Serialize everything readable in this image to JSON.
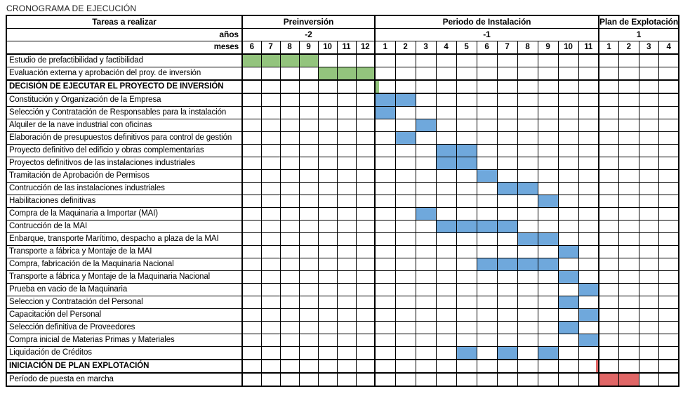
{
  "title": "CRONOGRAMA DE EJECUCIÓN",
  "colors": {
    "green": "#93C47D",
    "blue": "#6FA8DC",
    "red": "#E06666",
    "border": "#000000"
  },
  "chart_data": {
    "type": "table",
    "subtype": "gantt",
    "title": "CRONOGRAMA DE EJECUCIÓN",
    "header": {
      "tasks_col": "Tareas a realizar",
      "years_label": "años",
      "months_label": "meses"
    },
    "groups": [
      {
        "label": "Preinversión",
        "year": "-2",
        "months": [
          "6",
          "7",
          "8",
          "9",
          "10",
          "11",
          "12"
        ]
      },
      {
        "label": "Periodo de Instalación",
        "year": "-1",
        "months": [
          "1",
          "2",
          "3",
          "4",
          "5",
          "6",
          "7",
          "8",
          "9",
          "10",
          "11"
        ]
      },
      {
        "label": "Plan de Explotación",
        "year": "1",
        "months": [
          "1",
          "2",
          "3",
          "4"
        ]
      }
    ],
    "tasks": [
      {
        "label": "Estudio de prefactibilidad y factibilidad",
        "color": "green",
        "fills": [
          {
            "group": 0,
            "months": [
              6,
              7,
              8,
              9
            ]
          }
        ]
      },
      {
        "label": "Evaluación externa y aprobación del proy. de inversión",
        "color": "green",
        "fills": [
          {
            "group": 0,
            "months": [
              10,
              11,
              12
            ]
          }
        ]
      },
      {
        "label": "DECISIÓN DE EJECUTAR EL PROYECTO DE INVERSIÓN",
        "section": true,
        "marker": {
          "group": 1,
          "month": 1,
          "edge": "left",
          "color": "green"
        }
      },
      {
        "label": "Constitución y Organización de la Empresa",
        "color": "blue",
        "fills": [
          {
            "group": 1,
            "months": [
              1,
              2
            ]
          }
        ]
      },
      {
        "label": "Selección y Contratación de Responsables para la instalación",
        "color": "blue",
        "fills": [
          {
            "group": 1,
            "months": [
              1
            ]
          }
        ]
      },
      {
        "label": "Alquiler de la nave industrial con oficinas",
        "color": "blue",
        "fills": [
          {
            "group": 1,
            "months": [
              3
            ]
          }
        ]
      },
      {
        "label": "Elaboración de presupuestos definitivos para control de gestión",
        "color": "blue",
        "fills": [
          {
            "group": 1,
            "months": [
              2
            ]
          }
        ]
      },
      {
        "label": "Proyecto definitivo del edificio y obras complementarias",
        "color": "blue",
        "fills": [
          {
            "group": 1,
            "months": [
              4,
              5
            ]
          }
        ]
      },
      {
        "label": "Proyectos definitivos de las instalaciones industriales",
        "color": "blue",
        "fills": [
          {
            "group": 1,
            "months": [
              4,
              5
            ]
          }
        ]
      },
      {
        "label": "Tramitación de Aprobación de Permisos",
        "color": "blue",
        "fills": [
          {
            "group": 1,
            "months": [
              6
            ]
          }
        ]
      },
      {
        "label": "Contrucción de las instalaciones industriales",
        "color": "blue",
        "fills": [
          {
            "group": 1,
            "months": [
              7,
              8
            ]
          }
        ]
      },
      {
        "label": "Habilitaciones definitivas",
        "color": "blue",
        "fills": [
          {
            "group": 1,
            "months": [
              9
            ]
          }
        ]
      },
      {
        "label": "Compra de la Maquinaria a Importar (MAI)",
        "color": "blue",
        "fills": [
          {
            "group": 1,
            "months": [
              3
            ]
          }
        ]
      },
      {
        "label": "Contrucción de la MAI",
        "color": "blue",
        "fills": [
          {
            "group": 1,
            "months": [
              4,
              5,
              6,
              7
            ]
          }
        ]
      },
      {
        "label": "Enbarque, transporte Marítimo, despacho a plaza de la MAI",
        "color": "blue",
        "fills": [
          {
            "group": 1,
            "months": [
              8,
              9
            ]
          }
        ]
      },
      {
        "label": "Transporte a fábrica y Montaje de la MAI",
        "color": "blue",
        "fills": [
          {
            "group": 1,
            "months": [
              10
            ]
          }
        ]
      },
      {
        "label": "Compra, fabricación de la Maquinaria Nacional",
        "color": "blue",
        "fills": [
          {
            "group": 1,
            "months": [
              6,
              7,
              8,
              9
            ]
          }
        ]
      },
      {
        "label": "Transporte a fábrica y Montaje de la Maquinaria Nacional",
        "color": "blue",
        "fills": [
          {
            "group": 1,
            "months": [
              10
            ]
          }
        ]
      },
      {
        "label": "Prueba en vacio de la Maquinaria",
        "color": "blue",
        "fills": [
          {
            "group": 1,
            "months": [
              11
            ]
          }
        ]
      },
      {
        "label": "Seleccion y Contratación del Personal",
        "color": "blue",
        "fills": [
          {
            "group": 1,
            "months": [
              10
            ]
          }
        ]
      },
      {
        "label": "Capacitación del Personal",
        "color": "blue",
        "fills": [
          {
            "group": 1,
            "months": [
              11
            ]
          }
        ]
      },
      {
        "label": "Selección definitiva de Proveedores",
        "color": "blue",
        "fills": [
          {
            "group": 1,
            "months": [
              10
            ]
          }
        ]
      },
      {
        "label": "Compra inicial de Materias Primas y Materiales",
        "color": "blue",
        "fills": [
          {
            "group": 1,
            "months": [
              11
            ]
          }
        ]
      },
      {
        "label": "Liquidación de Créditos",
        "color": "blue",
        "fills": [
          {
            "group": 1,
            "months": [
              5,
              7,
              9
            ]
          }
        ]
      },
      {
        "label": "INICIACIÓN DE PLAN EXPLOTACIÓN",
        "section": true,
        "marker": {
          "group": 1,
          "month": 11,
          "edge": "right",
          "color": "red"
        }
      },
      {
        "label": "Período de puesta en marcha",
        "color": "red",
        "fills": [
          {
            "group": 2,
            "months": [
              1,
              2
            ]
          }
        ]
      }
    ]
  }
}
